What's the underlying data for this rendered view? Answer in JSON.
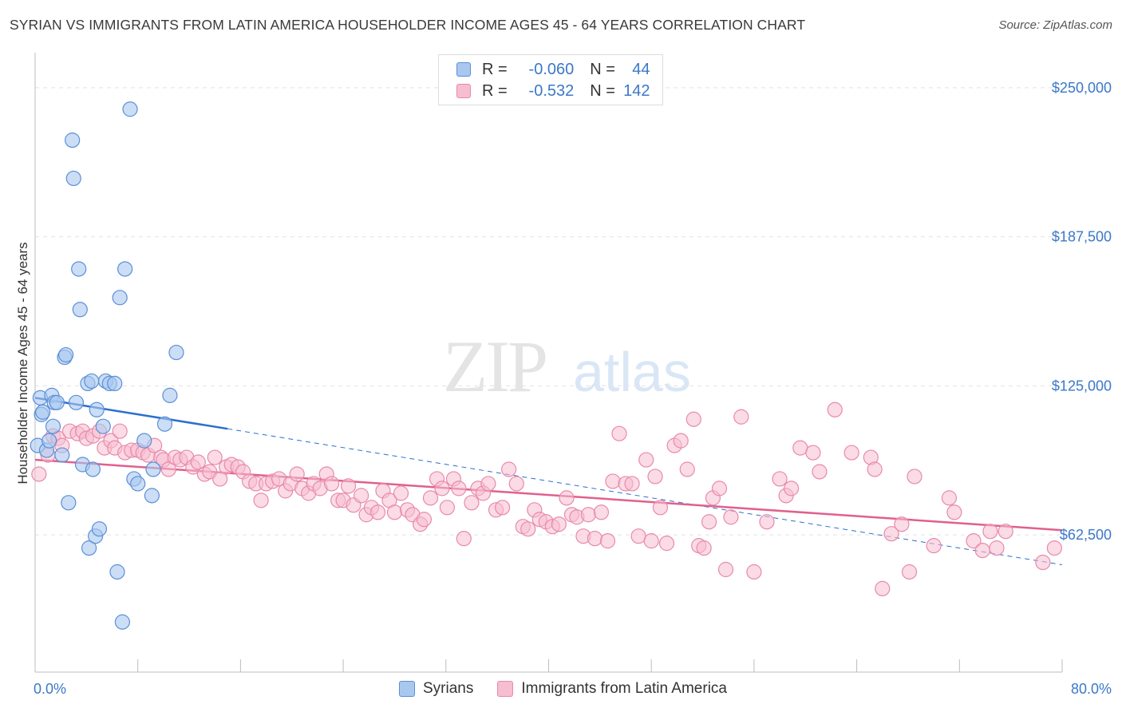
{
  "title": "SYRIAN VS IMMIGRANTS FROM LATIN AMERICA HOUSEHOLDER INCOME AGES 45 - 64 YEARS CORRELATION CHART",
  "source": "Source: ZipAtlas.com",
  "watermark": {
    "zip": "ZIP",
    "atlas": "atlas"
  },
  "legend_top": {
    "rows": [
      {
        "r_label": "R =",
        "r_value": "-0.060",
        "n_label": "N =",
        "n_value": "44"
      },
      {
        "r_label": "R =",
        "r_value": "-0.532",
        "n_label": "N =",
        "n_value": "142"
      }
    ]
  },
  "legend_bottom": [
    "Syrians",
    "Immigrants from Latin America"
  ],
  "colors": {
    "syrian_fill": "#a9c8f0",
    "syrian_stroke": "#5b8fd6",
    "syrian_line": "#2b6fcf",
    "latin_fill": "#f7bdd0",
    "latin_stroke": "#e88aab",
    "latin_line": "#e0608d",
    "label_blue": "#3b78c8",
    "grid": "#e3e3e3"
  },
  "chart_data": {
    "type": "scatter",
    "ylabel": "Householder Income Ages 45 - 64 years",
    "x_tick_labels": [
      "0.0%",
      "80.0%"
    ],
    "y_tick_labels": [
      "$250,000",
      "$187,500",
      "$125,000",
      "$62,500"
    ],
    "y_ticks": [
      250000,
      187500,
      125000,
      62500
    ],
    "xlim": [
      0,
      80
    ],
    "ylim": [
      5000,
      262000
    ],
    "grid": true,
    "series": [
      {
        "name": "Syrians",
        "trend": {
          "x0": 0.0,
          "y0": 120000,
          "x1": 15.0,
          "y1": 107000,
          "x_dash_end": 80.0,
          "y_dash_end": 50000
        },
        "points": [
          [
            0.2,
            100000
          ],
          [
            0.4,
            120000
          ],
          [
            0.5,
            113000
          ],
          [
            0.6,
            114000
          ],
          [
            0.9,
            98000
          ],
          [
            1.1,
            102000
          ],
          [
            1.3,
            121000
          ],
          [
            1.4,
            108000
          ],
          [
            1.5,
            118000
          ],
          [
            1.7,
            118000
          ],
          [
            2.1,
            96000
          ],
          [
            2.3,
            137000
          ],
          [
            2.4,
            138000
          ],
          [
            2.6,
            76000
          ],
          [
            2.9,
            228000
          ],
          [
            3.0,
            212000
          ],
          [
            3.2,
            118000
          ],
          [
            3.4,
            174000
          ],
          [
            3.5,
            157000
          ],
          [
            3.7,
            92000
          ],
          [
            4.1,
            126000
          ],
          [
            4.2,
            57000
          ],
          [
            4.4,
            127000
          ],
          [
            4.5,
            90000
          ],
          [
            4.7,
            62000
          ],
          [
            4.8,
            115000
          ],
          [
            5.0,
            65000
          ],
          [
            5.3,
            108000
          ],
          [
            5.5,
            127000
          ],
          [
            5.8,
            126000
          ],
          [
            6.2,
            126000
          ],
          [
            6.4,
            47000
          ],
          [
            6.6,
            162000
          ],
          [
            6.8,
            26000
          ],
          [
            7.0,
            174000
          ],
          [
            7.4,
            241000
          ],
          [
            7.7,
            86000
          ],
          [
            8.0,
            84000
          ],
          [
            8.5,
            102000
          ],
          [
            9.1,
            79000
          ],
          [
            9.2,
            90000
          ],
          [
            10.1,
            109000
          ],
          [
            10.5,
            121000
          ],
          [
            11.0,
            139000
          ]
        ]
      },
      {
        "name": "Immigrants from Latin America",
        "trend": {
          "x0": 0.0,
          "y0": 94000,
          "x1": 80.0,
          "y1": 64500
        },
        "points": [
          [
            0.3,
            88000
          ],
          [
            1.0,
            96000
          ],
          [
            1.4,
            104000
          ],
          [
            1.8,
            103000
          ],
          [
            2.1,
            100000
          ],
          [
            2.7,
            106000
          ],
          [
            3.3,
            105000
          ],
          [
            3.7,
            106000
          ],
          [
            4.0,
            103000
          ],
          [
            4.5,
            104000
          ],
          [
            5.0,
            106000
          ],
          [
            5.4,
            99000
          ],
          [
            5.9,
            102000
          ],
          [
            6.2,
            99000
          ],
          [
            6.6,
            106000
          ],
          [
            7.0,
            97000
          ],
          [
            7.5,
            98000
          ],
          [
            8.0,
            98000
          ],
          [
            8.4,
            97000
          ],
          [
            8.8,
            96000
          ],
          [
            9.3,
            100000
          ],
          [
            9.8,
            95000
          ],
          [
            10.0,
            94000
          ],
          [
            10.4,
            90000
          ],
          [
            10.9,
            95000
          ],
          [
            11.3,
            94000
          ],
          [
            11.8,
            95000
          ],
          [
            12.3,
            91000
          ],
          [
            12.7,
            93000
          ],
          [
            13.2,
            88000
          ],
          [
            13.6,
            89000
          ],
          [
            14.0,
            95000
          ],
          [
            14.4,
            86000
          ],
          [
            14.9,
            91000
          ],
          [
            15.3,
            92000
          ],
          [
            15.8,
            91000
          ],
          [
            16.2,
            89000
          ],
          [
            16.7,
            85000
          ],
          [
            17.2,
            84000
          ],
          [
            17.6,
            77000
          ],
          [
            18.0,
            84000
          ],
          [
            18.5,
            85000
          ],
          [
            19.0,
            86000
          ],
          [
            19.5,
            81000
          ],
          [
            19.9,
            84000
          ],
          [
            20.4,
            88000
          ],
          [
            20.8,
            82000
          ],
          [
            21.3,
            80000
          ],
          [
            21.7,
            84000
          ],
          [
            22.2,
            82000
          ],
          [
            22.7,
            88000
          ],
          [
            23.1,
            84000
          ],
          [
            23.6,
            77000
          ],
          [
            24.0,
            77000
          ],
          [
            24.4,
            83000
          ],
          [
            24.8,
            75000
          ],
          [
            25.4,
            79000
          ],
          [
            25.8,
            71000
          ],
          [
            26.2,
            74000
          ],
          [
            26.7,
            72000
          ],
          [
            27.1,
            81000
          ],
          [
            27.6,
            77000
          ],
          [
            28.0,
            72000
          ],
          [
            28.5,
            80000
          ],
          [
            29.0,
            73000
          ],
          [
            29.4,
            71000
          ],
          [
            30.0,
            67000
          ],
          [
            30.3,
            69000
          ],
          [
            30.8,
            78000
          ],
          [
            31.3,
            86000
          ],
          [
            31.7,
            82000
          ],
          [
            32.1,
            74000
          ],
          [
            32.6,
            86000
          ],
          [
            33.0,
            82000
          ],
          [
            33.4,
            61000
          ],
          [
            34.0,
            76000
          ],
          [
            34.5,
            82000
          ],
          [
            34.9,
            80000
          ],
          [
            35.3,
            84000
          ],
          [
            35.9,
            73000
          ],
          [
            36.4,
            74000
          ],
          [
            36.9,
            90000
          ],
          [
            37.5,
            84000
          ],
          [
            38.0,
            66000
          ],
          [
            38.4,
            65000
          ],
          [
            38.9,
            73000
          ],
          [
            39.3,
            69000
          ],
          [
            39.8,
            68000
          ],
          [
            40.3,
            66000
          ],
          [
            40.8,
            67000
          ],
          [
            41.4,
            78000
          ],
          [
            41.8,
            71000
          ],
          [
            42.2,
            70000
          ],
          [
            42.7,
            62000
          ],
          [
            43.1,
            71000
          ],
          [
            43.6,
            61000
          ],
          [
            44.1,
            72000
          ],
          [
            44.6,
            60000
          ],
          [
            45.0,
            85000
          ],
          [
            45.5,
            105000
          ],
          [
            46.0,
            84000
          ],
          [
            46.5,
            84000
          ],
          [
            47.0,
            62000
          ],
          [
            47.6,
            94000
          ],
          [
            48.0,
            60000
          ],
          [
            48.3,
            87000
          ],
          [
            48.7,
            74000
          ],
          [
            49.2,
            59000
          ],
          [
            49.8,
            100000
          ],
          [
            50.3,
            102000
          ],
          [
            50.8,
            90000
          ],
          [
            51.3,
            111000
          ],
          [
            51.7,
            58000
          ],
          [
            52.1,
            57000
          ],
          [
            52.5,
            68000
          ],
          [
            52.8,
            78000
          ],
          [
            53.3,
            82000
          ],
          [
            53.8,
            48000
          ],
          [
            54.2,
            70000
          ],
          [
            55.0,
            112000
          ],
          [
            56.0,
            47000
          ],
          [
            57.0,
            68000
          ],
          [
            58.0,
            86000
          ],
          [
            58.5,
            79000
          ],
          [
            58.9,
            82000
          ],
          [
            59.6,
            99000
          ],
          [
            60.6,
            97000
          ],
          [
            61.1,
            89000
          ],
          [
            62.3,
            115000
          ],
          [
            63.6,
            97000
          ],
          [
            65.1,
            95000
          ],
          [
            65.4,
            90000
          ],
          [
            66.0,
            40000
          ],
          [
            66.7,
            63000
          ],
          [
            67.5,
            67000
          ],
          [
            68.1,
            47000
          ],
          [
            68.5,
            87000
          ],
          [
            70.0,
            58000
          ],
          [
            71.2,
            78000
          ],
          [
            71.6,
            72000
          ],
          [
            73.1,
            60000
          ],
          [
            73.8,
            56000
          ],
          [
            74.4,
            64000
          ],
          [
            74.9,
            57000
          ],
          [
            75.6,
            64000
          ],
          [
            78.5,
            51000
          ],
          [
            79.4,
            57000
          ]
        ]
      }
    ]
  }
}
